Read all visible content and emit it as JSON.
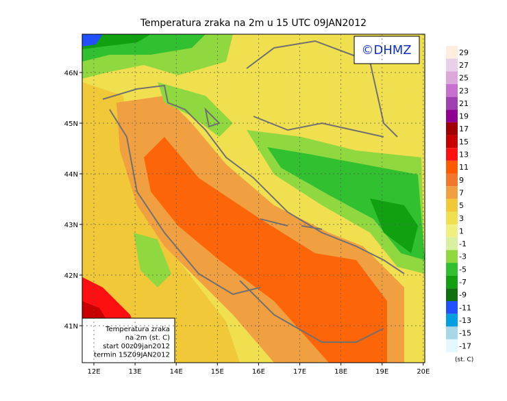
{
  "title": "Temperatura zraka na 2m u 15 UTC 09JAN2012",
  "copyright": "©DHMZ",
  "lat_labels": [
    "46N",
    "45N",
    "44N",
    "43N",
    "42N",
    "41N"
  ],
  "lon_labels": [
    "12E",
    "13E",
    "14E",
    "15E",
    "16E",
    "17E",
    "18E",
    "19E",
    "20E"
  ],
  "info_box": [
    "Temperatura zraka",
    "na 2m (st. C)",
    "start 00z09jan2012",
    "termin 15Z09JAN2012"
  ],
  "colorbar": {
    "labels": [
      29,
      27,
      25,
      23,
      21,
      19,
      17,
      15,
      13,
      11,
      9,
      7,
      5,
      3,
      1,
      -1,
      -3,
      -5,
      -7,
      -9,
      -11,
      -13,
      -15,
      -17
    ],
    "colors": [
      "#fdeee0",
      "#e8d0e8",
      "#dca8dc",
      "#c870d0",
      "#a040b0",
      "#900090",
      "#a00000",
      "#c80000",
      "#ff1010",
      "#ff5a00",
      "#f07828",
      "#f0a040",
      "#f0c838",
      "#f0e050",
      "#f0f080",
      "#d8f0a0",
      "#90d840",
      "#30c030",
      "#10a010",
      "#107010",
      "#2050ff",
      "#00a0e0",
      "#a8d8e8",
      "#e6f8ff"
    ],
    "unit": "(st. C)"
  }
}
